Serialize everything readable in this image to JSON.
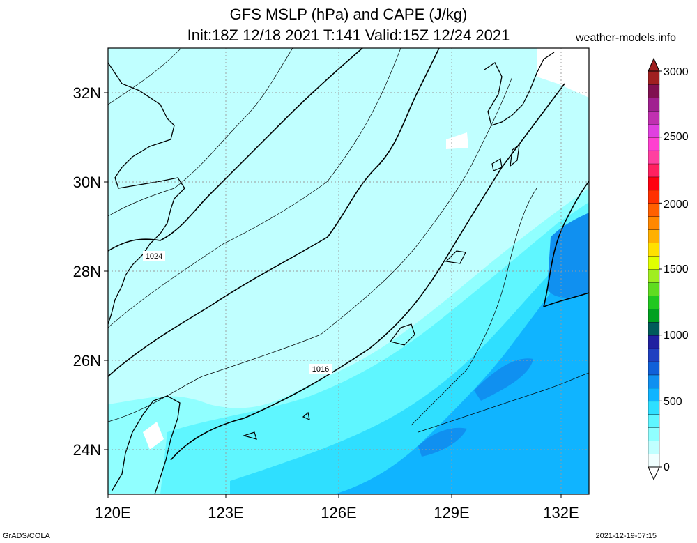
{
  "title_line1": "GFS MSLP (hPa) and CAPE (J/kg)",
  "title_line2": "Init:18Z 12/18 2021 T:141 Valid:15Z 12/24 2021",
  "site": "weather-models.info",
  "footer_left": "GrADS/COLA",
  "footer_right": "2021-12-19-07:15",
  "lat_labels": [
    "32N",
    "30N",
    "28N",
    "26N",
    "24N"
  ],
  "lon_labels": [
    "120E",
    "123E",
    "126E",
    "129E",
    "132E"
  ],
  "isobar_labels": [
    "1024",
    "1016"
  ],
  "colorbar": {
    "labels": [
      "3000",
      "2500",
      "2000",
      "1500",
      "1000",
      "500",
      "0"
    ],
    "colors": [
      "#f0ffff",
      "#c0ffff",
      "#90ffff",
      "#5ff6ff",
      "#2fdfff",
      "#10b4ff",
      "#1090f0",
      "#1060d8",
      "#1f40c0",
      "#2020a0",
      "#005a5a",
      "#00a020",
      "#20c820",
      "#60dc20",
      "#a0ee20",
      "#e0ff00",
      "#ffe000",
      "#ffb000",
      "#ff8800",
      "#ff6000",
      "#ff3000",
      "#ff0010",
      "#ff2060",
      "#ff40a0",
      "#ff40d0",
      "#e040e0",
      "#c030b0",
      "#a02090",
      "#801050",
      "#a02020"
    ]
  },
  "colors": {
    "cape_low": "#c0ffff",
    "cape_mid": "#5ff6ff",
    "cape_high": "#2fdfff",
    "cape_higher": "#10b4ff",
    "cape_max": "#1090f0"
  }
}
